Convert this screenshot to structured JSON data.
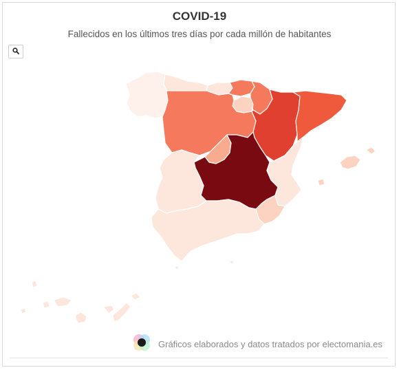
{
  "header": {
    "title": "COVID-19",
    "subtitle": "Fallecidos en los últimos tres días por cada millón de habitantes"
  },
  "toolbar": {
    "zoom_icon": "search-icon"
  },
  "footer": {
    "credit": "Gráficos elaborados y datos tratados por electomania.es",
    "logo_icon": "electomania-logo-icon"
  },
  "colors": {
    "darkest": "#7a0a12",
    "dark": "#e0402f",
    "medium_dark": "#ef5a3c",
    "medium": "#f4795d",
    "medium_light": "#f9ab8f",
    "light": "#fcd3c1",
    "lightest": "#fde6dc",
    "palest": "#fef1eb"
  },
  "regions": [
    {
      "id": "galicia",
      "shade": "palest"
    },
    {
      "id": "asturias",
      "shade": "lightest"
    },
    {
      "id": "cantabria",
      "shade": "lightest"
    },
    {
      "id": "pais-vasco",
      "shade": "medium"
    },
    {
      "id": "navarra",
      "shade": "medium"
    },
    {
      "id": "la-rioja",
      "shade": "light"
    },
    {
      "id": "aragon",
      "shade": "dark"
    },
    {
      "id": "cataluna",
      "shade": "medium_dark"
    },
    {
      "id": "castilla-y-leon",
      "shade": "medium"
    },
    {
      "id": "madrid",
      "shade": "medium_light"
    },
    {
      "id": "castilla-la-mancha",
      "shade": "darkest"
    },
    {
      "id": "extremadura",
      "shade": "lightest"
    },
    {
      "id": "comunidad-valenciana",
      "shade": "lightest"
    },
    {
      "id": "murcia",
      "shade": "light"
    },
    {
      "id": "andalucia",
      "shade": "lightest"
    },
    {
      "id": "islas-baleares",
      "shade": "light"
    },
    {
      "id": "canarias",
      "shade": "lightest"
    },
    {
      "id": "ceuta-melilla",
      "shade": "lightest"
    }
  ]
}
